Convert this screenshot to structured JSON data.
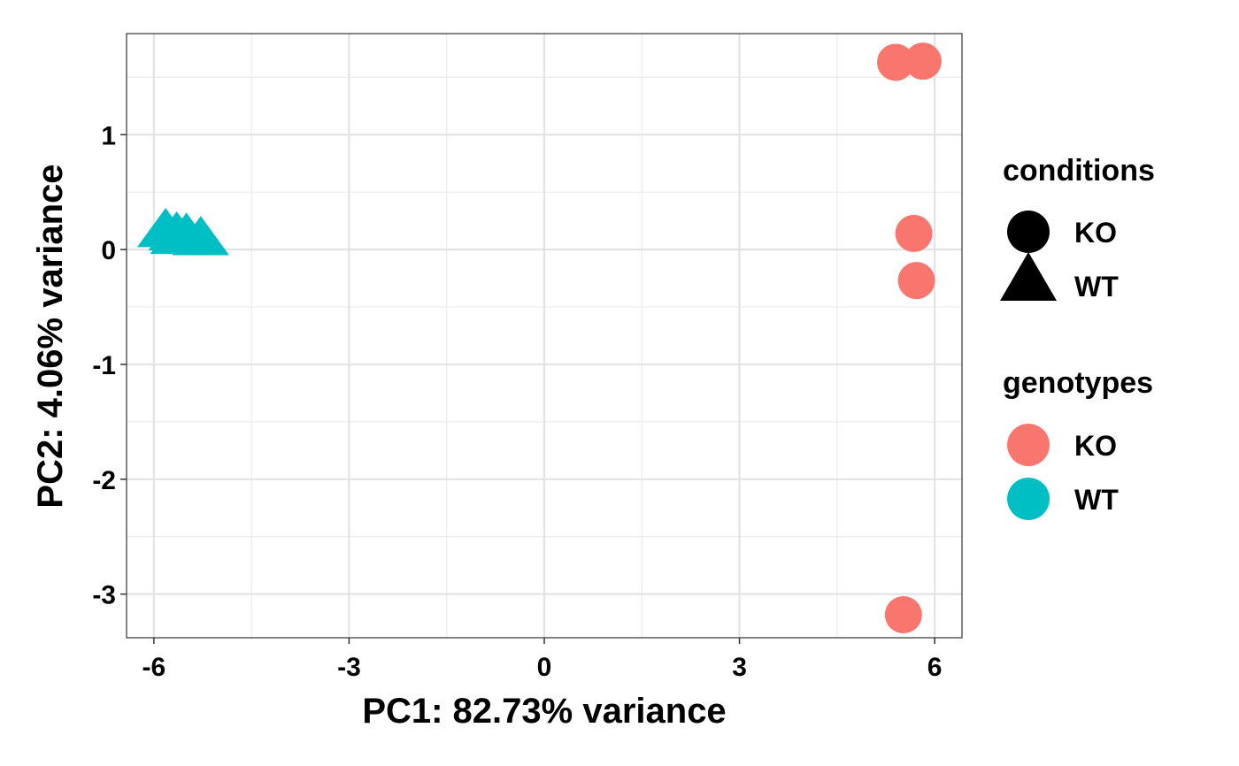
{
  "chart_data": {
    "type": "scatter",
    "xlabel": "PC1: 82.73% variance",
    "ylabel": "PC2: 4.06% variance",
    "xlim": [
      -6.42,
      6.42
    ],
    "ylim": [
      -3.38,
      1.88
    ],
    "x_ticks": [
      -6,
      -3,
      0,
      3,
      6
    ],
    "x_tick_labels": [
      "-6",
      "-3",
      "0",
      "3",
      "6"
    ],
    "y_ticks": [
      -3,
      -2,
      -1,
      0,
      1
    ],
    "y_tick_labels": [
      "-3",
      "-2",
      "-1",
      "0",
      "1"
    ],
    "grid": true,
    "legend_position": "right",
    "series": [
      {
        "condition": "KO",
        "genotype": "KO",
        "shape": "circle",
        "color": "#F8766D",
        "points": [
          {
            "x": 5.4,
            "y": 1.63
          },
          {
            "x": 5.82,
            "y": 1.64
          },
          {
            "x": 5.68,
            "y": 0.14
          },
          {
            "x": 5.72,
            "y": -0.27
          },
          {
            "x": 5.52,
            "y": -3.18
          }
        ]
      },
      {
        "condition": "WT",
        "genotype": "WT",
        "shape": "triangle",
        "color": "#00BFC4",
        "points": [
          {
            "x": -5.82,
            "y": 0.1
          },
          {
            "x": -5.65,
            "y": 0.07
          },
          {
            "x": -5.5,
            "y": 0.06
          },
          {
            "x": -5.62,
            "y": 0.04
          },
          {
            "x": -5.28,
            "y": 0.03
          }
        ]
      }
    ]
  },
  "legends": [
    {
      "title": "conditions",
      "items": [
        {
          "label": "KO",
          "shape": "circle",
          "color": "#000000"
        },
        {
          "label": "WT",
          "shape": "triangle",
          "color": "#000000"
        }
      ]
    },
    {
      "title": "genotypes",
      "items": [
        {
          "label": "KO",
          "shape": "circle",
          "color": "#F8766D"
        },
        {
          "label": "WT",
          "shape": "circle",
          "color": "#00BFC4"
        }
      ]
    }
  ]
}
